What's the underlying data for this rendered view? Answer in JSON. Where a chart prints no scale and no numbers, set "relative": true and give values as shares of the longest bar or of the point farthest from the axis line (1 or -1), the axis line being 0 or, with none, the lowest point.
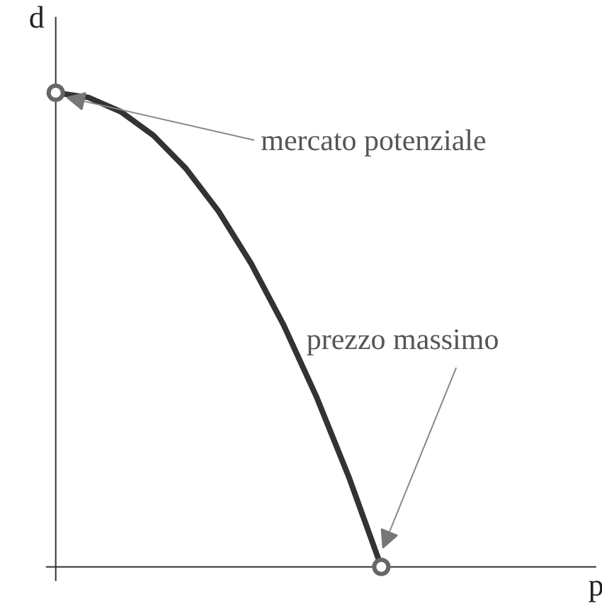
{
  "chart_data": {
    "type": "line",
    "relative": true,
    "ylabel": "d",
    "categories": [
      null,
      null,
      null,
      null,
      null,
      null,
      null,
      null,
      null,
      null,
      null
    ],
    "series": [
      {
        "color": "#333333",
        "values": [
          1,
          0.99,
          0.96,
          0.91,
          0.84,
          0.75,
          0.64,
          0.51,
          0.36,
          0.19,
          0
        ]
      }
    ],
    "annotations": [
      "mercato potenziale",
      "prezzo massimo",
      "p"
    ],
    "grid": false
  }
}
